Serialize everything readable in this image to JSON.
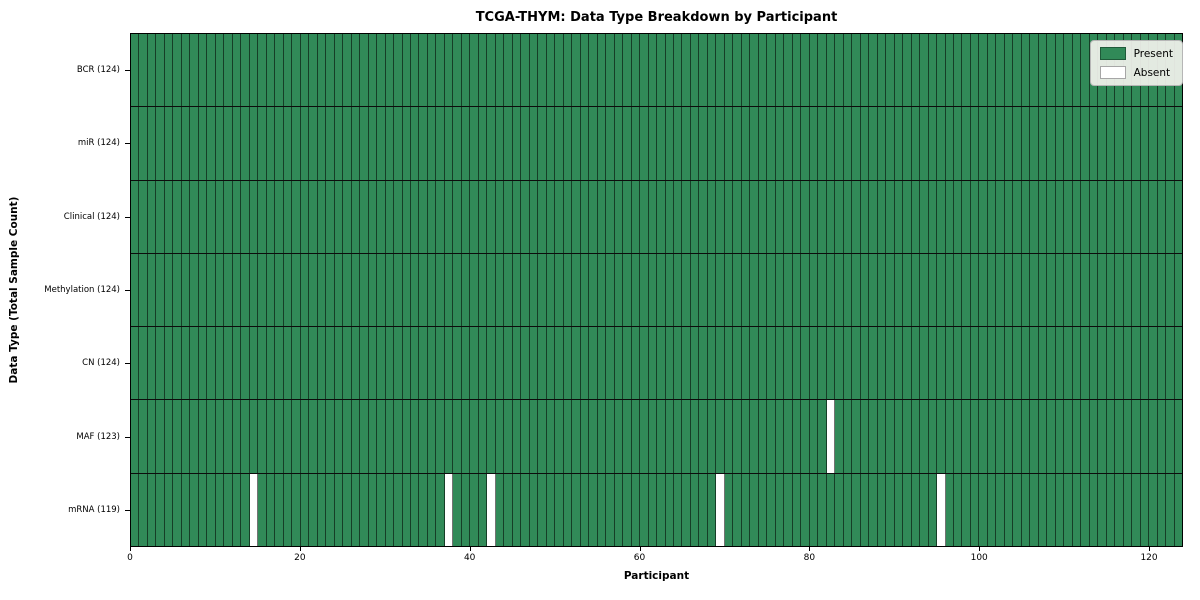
{
  "figure": {
    "title": "TCGA-THYM: Data Type Breakdown by Participant",
    "xlabel": "Participant",
    "ylabel": "Data Type (Total Sample Count)"
  },
  "legend": {
    "entries": [
      {
        "label": "Present",
        "color": "#318a58"
      },
      {
        "label": "Absent",
        "color": "#ffffff"
      }
    ]
  },
  "chart_data": {
    "type": "heatmap",
    "title": "TCGA-THYM: Data Type Breakdown by Participant",
    "xlabel": "Participant",
    "ylabel": "Data Type (Total Sample Count)",
    "n_participants": 124,
    "xlim": [
      0,
      124
    ],
    "x_ticks": [
      0,
      20,
      40,
      60,
      80,
      100,
      120
    ],
    "grid": "cell-edges",
    "legend_position": "upper right",
    "rows": [
      {
        "name": "BCR",
        "count": 124,
        "label": "BCR (124)",
        "absent": []
      },
      {
        "name": "miR",
        "count": 124,
        "label": "miR (124)",
        "absent": []
      },
      {
        "name": "Clinical",
        "count": 124,
        "label": "Clinical (124)",
        "absent": []
      },
      {
        "name": "Methylation",
        "count": 124,
        "label": "Methylation (124)",
        "absent": []
      },
      {
        "name": "CN",
        "count": 124,
        "label": "CN (124)",
        "absent": []
      },
      {
        "name": "MAF",
        "count": 123,
        "label": "MAF (123)",
        "absent": [
          82
        ]
      },
      {
        "name": "mRNA",
        "count": 119,
        "label": "mRNA (119)",
        "absent": [
          14,
          37,
          42,
          69,
          95
        ]
      }
    ],
    "colors": {
      "present": "#318a58",
      "absent": "#ffffff",
      "cell_edge": "rgba(0,0,0,0.55)",
      "row_divider": "#0c0c0c"
    }
  }
}
